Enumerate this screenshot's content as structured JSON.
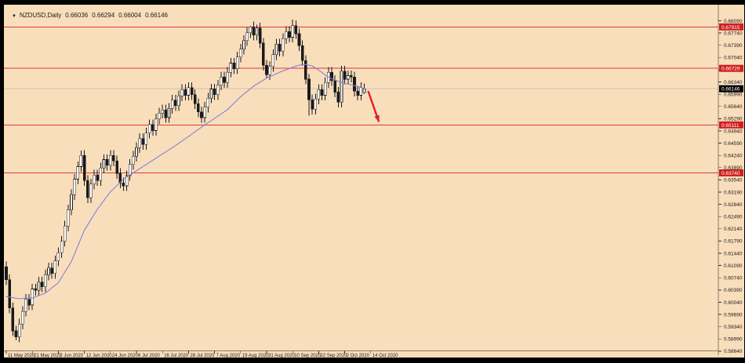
{
  "window": {
    "kind": "mt4-chart-window"
  },
  "title": {
    "marker": "▼",
    "symbol_period": "NZDUSD,Daily",
    "open": "0.66036",
    "high": "0.66294",
    "low": "0.66004",
    "close": "0.66146"
  },
  "colors": {
    "background": "#f9debc",
    "frame": "#010101",
    "bull_body": "#ffffff",
    "bear_body": "#1a1a1a",
    "wick": "#1a1a1a",
    "ma_line": "#8181d8",
    "level_line": "#e03a3a",
    "level_tag_bg": "#cf2020",
    "level_tag_text": "#ffffff",
    "current_line": "#c8c2b4",
    "current_tag_bg": "#000000",
    "current_tag_text": "#ffffff",
    "axis_line": "#8a7a60",
    "axis_text": "#1a1a1a",
    "arrow": "#e21f1f"
  },
  "chart_data": {
    "type": "candlestick",
    "title": "NZDUSD,Daily",
    "symbol": "NZDUSD",
    "timeframe": "Daily",
    "last_quote": {
      "open": 0.66036,
      "high": 0.66294,
      "low": 0.66004,
      "close": 0.66146
    },
    "current_price": 0.66146,
    "x_tick_labels": [
      "11 May 2020",
      "21 May 2020",
      "2 Jun 2020",
      "12 Jun 2020",
      "24 Jun 2020",
      "6 Jul 2020",
      "16 Jul 2020",
      "28 Jul 2020",
      "7 Aug 2020",
      "19 Aug 2020",
      "31 Aug 2020",
      "10 Sep 2020",
      "22 Sep 2020",
      "2 Oct 2020",
      "14 Oct 2020"
    ],
    "bars_per_x_tick": 8,
    "y_axis": {
      "price_top": 0.6855,
      "price_bottom": 0.5866,
      "tick_labels": [
        "0.68090",
        "0.67740",
        "0.67390",
        "0.67040",
        "0.66690",
        "0.66340",
        "0.65990",
        "0.65640",
        "0.65290",
        "0.64940",
        "0.64590",
        "0.64240",
        "0.63890",
        "0.63540",
        "0.63190",
        "0.62840",
        "0.62490",
        "0.62140",
        "0.61790",
        "0.61440",
        "0.61090",
        "0.60740",
        "0.60390",
        "0.60040",
        "0.59690",
        "0.59340",
        "0.58990",
        "0.58640"
      ]
    },
    "price_levels": [
      {
        "price": 0.67915,
        "label": "0.67915"
      },
      {
        "price": 0.66729,
        "label": "0.66729"
      },
      {
        "price": 0.65111,
        "label": "0.65111"
      },
      {
        "price": 0.6374,
        "label": "0.63740"
      }
    ],
    "bars": [
      [
        0.6105,
        0.612,
        0.6053,
        0.6068
      ],
      [
        0.6068,
        0.6083,
        0.5973,
        0.5988
      ],
      [
        0.5988,
        0.6003,
        0.5907,
        0.5922
      ],
      [
        0.5922,
        0.5937,
        0.5895,
        0.5905
      ],
      [
        0.5905,
        0.5957,
        0.589,
        0.5942
      ],
      [
        0.5942,
        0.5993,
        0.5927,
        0.5978
      ],
      [
        0.5978,
        0.6027,
        0.5963,
        0.6012
      ],
      [
        0.6012,
        0.6027,
        0.5981,
        0.5996
      ],
      [
        0.5996,
        0.6057,
        0.5981,
        0.6042
      ],
      [
        0.6042,
        0.6057,
        0.6023,
        0.6038
      ],
      [
        0.6038,
        0.6077,
        0.6023,
        0.6062
      ],
      [
        0.6062,
        0.6077,
        0.6033,
        0.6048
      ],
      [
        0.6048,
        0.6097,
        0.6033,
        0.6082
      ],
      [
        0.6082,
        0.6117,
        0.6067,
        0.6102
      ],
      [
        0.6102,
        0.6117,
        0.6071,
        0.6086
      ],
      [
        0.6086,
        0.6137,
        0.6071,
        0.6122
      ],
      [
        0.6122,
        0.6161,
        0.6107,
        0.6146
      ],
      [
        0.6146,
        0.6193,
        0.6131,
        0.6178
      ],
      [
        0.6178,
        0.6237,
        0.6163,
        0.6222
      ],
      [
        0.6222,
        0.6283,
        0.6207,
        0.6268
      ],
      [
        0.6268,
        0.6327,
        0.6253,
        0.6312
      ],
      [
        0.6312,
        0.6371,
        0.6297,
        0.6356
      ],
      [
        0.6356,
        0.6407,
        0.6341,
        0.6392
      ],
      [
        0.6392,
        0.6438,
        0.6377,
        0.6424
      ],
      [
        0.6424,
        0.6439,
        0.6337,
        0.6352
      ],
      [
        0.6352,
        0.6367,
        0.6288,
        0.6303
      ],
      [
        0.6303,
        0.6357,
        0.6288,
        0.6342
      ],
      [
        0.6342,
        0.6383,
        0.6327,
        0.6368
      ],
      [
        0.6368,
        0.6383,
        0.6337,
        0.6352
      ],
      [
        0.6352,
        0.6403,
        0.6337,
        0.6388
      ],
      [
        0.6388,
        0.6427,
        0.6373,
        0.6412
      ],
      [
        0.6412,
        0.6427,
        0.6381,
        0.6396
      ],
      [
        0.6396,
        0.6439,
        0.6381,
        0.6424
      ],
      [
        0.6424,
        0.6439,
        0.6393,
        0.6408
      ],
      [
        0.6408,
        0.6423,
        0.6357,
        0.6372
      ],
      [
        0.6372,
        0.6387,
        0.633,
        0.6345
      ],
      [
        0.6345,
        0.636,
        0.6322,
        0.6337
      ],
      [
        0.6337,
        0.6381,
        0.6322,
        0.6366
      ],
      [
        0.6366,
        0.6413,
        0.6351,
        0.6398
      ],
      [
        0.6398,
        0.6437,
        0.6383,
        0.6422
      ],
      [
        0.6422,
        0.6461,
        0.6407,
        0.6446
      ],
      [
        0.6446,
        0.6487,
        0.6431,
        0.6472
      ],
      [
        0.6472,
        0.6487,
        0.644,
        0.6455
      ],
      [
        0.6455,
        0.6503,
        0.644,
        0.6488
      ],
      [
        0.6488,
        0.6527,
        0.6473,
        0.6512
      ],
      [
        0.6512,
        0.6527,
        0.648,
        0.6495
      ],
      [
        0.6495,
        0.6543,
        0.648,
        0.6528
      ],
      [
        0.6528,
        0.656,
        0.6513,
        0.6545
      ],
      [
        0.6545,
        0.6569,
        0.653,
        0.6554
      ],
      [
        0.6554,
        0.6569,
        0.6517,
        0.6532
      ],
      [
        0.6532,
        0.6573,
        0.6517,
        0.6558
      ],
      [
        0.6558,
        0.6597,
        0.6543,
        0.6582
      ],
      [
        0.6582,
        0.6597,
        0.6551,
        0.6566
      ],
      [
        0.6566,
        0.6609,
        0.6551,
        0.6594
      ],
      [
        0.6594,
        0.6627,
        0.6579,
        0.6612
      ],
      [
        0.6612,
        0.6627,
        0.6581,
        0.6596
      ],
      [
        0.6596,
        0.6633,
        0.6581,
        0.6618
      ],
      [
        0.6618,
        0.6633,
        0.6583,
        0.6598
      ],
      [
        0.6598,
        0.6613,
        0.6557,
        0.6572
      ],
      [
        0.6572,
        0.6587,
        0.6533,
        0.6548
      ],
      [
        0.6548,
        0.6563,
        0.6517,
        0.6532
      ],
      [
        0.6532,
        0.6577,
        0.6517,
        0.6562
      ],
      [
        0.6562,
        0.6603,
        0.6547,
        0.6588
      ],
      [
        0.6588,
        0.6629,
        0.6573,
        0.6614
      ],
      [
        0.6614,
        0.6629,
        0.6583,
        0.6598
      ],
      [
        0.6598,
        0.664,
        0.6583,
        0.6625
      ],
      [
        0.6625,
        0.6663,
        0.661,
        0.6648
      ],
      [
        0.6648,
        0.6663,
        0.6617,
        0.6632
      ],
      [
        0.6632,
        0.6677,
        0.6617,
        0.6662
      ],
      [
        0.6662,
        0.6703,
        0.6647,
        0.6688
      ],
      [
        0.6688,
        0.6703,
        0.6657,
        0.6672
      ],
      [
        0.6672,
        0.672,
        0.6657,
        0.6705
      ],
      [
        0.6705,
        0.6743,
        0.669,
        0.6728
      ],
      [
        0.6728,
        0.6767,
        0.6713,
        0.6752
      ],
      [
        0.6752,
        0.679,
        0.6737,
        0.6775
      ],
      [
        0.6775,
        0.6795,
        0.676,
        0.6792
      ],
      [
        0.6792,
        0.6807,
        0.6753,
        0.6768
      ],
      [
        0.6768,
        0.6798,
        0.6753,
        0.6788
      ],
      [
        0.6788,
        0.6803,
        0.673,
        0.6745
      ],
      [
        0.6745,
        0.676,
        0.6667,
        0.6682
      ],
      [
        0.6682,
        0.6697,
        0.6645,
        0.6655
      ],
      [
        0.6655,
        0.6693,
        0.664,
        0.6678
      ],
      [
        0.6678,
        0.6727,
        0.6663,
        0.6712
      ],
      [
        0.6712,
        0.6757,
        0.6697,
        0.6742
      ],
      [
        0.6742,
        0.6757,
        0.6707,
        0.6722
      ],
      [
        0.6722,
        0.6773,
        0.6707,
        0.6758
      ],
      [
        0.6758,
        0.6793,
        0.6743,
        0.6778
      ],
      [
        0.6778,
        0.6793,
        0.6747,
        0.6762
      ],
      [
        0.6762,
        0.6812,
        0.6747,
        0.6795
      ],
      [
        0.6795,
        0.681,
        0.6757,
        0.6772
      ],
      [
        0.6772,
        0.6787,
        0.6723,
        0.6738
      ],
      [
        0.6738,
        0.6753,
        0.668,
        0.6695
      ],
      [
        0.6695,
        0.671,
        0.6627,
        0.6642
      ],
      [
        0.6642,
        0.6657,
        0.6538,
        0.6583
      ],
      [
        0.6583,
        0.6598,
        0.6541,
        0.6556
      ],
      [
        0.6556,
        0.66,
        0.6541,
        0.6585
      ],
      [
        0.6585,
        0.6627,
        0.657,
        0.6612
      ],
      [
        0.6612,
        0.6627,
        0.6581,
        0.6596
      ],
      [
        0.6596,
        0.6647,
        0.6581,
        0.6632
      ],
      [
        0.6632,
        0.6677,
        0.6617,
        0.6662
      ],
      [
        0.6662,
        0.6677,
        0.6623,
        0.6638
      ],
      [
        0.6638,
        0.6653,
        0.659,
        0.6605
      ],
      [
        0.6605,
        0.662,
        0.6561,
        0.6576
      ],
      [
        0.6576,
        0.668,
        0.6561,
        0.6665
      ],
      [
        0.6665,
        0.668,
        0.6627,
        0.6642
      ],
      [
        0.6642,
        0.6667,
        0.6627,
        0.6652
      ],
      [
        0.6652,
        0.6667,
        0.6633,
        0.6648
      ],
      [
        0.6648,
        0.6663,
        0.6593,
        0.6608
      ],
      [
        0.6608,
        0.6623,
        0.6581,
        0.6596
      ],
      [
        0.6596,
        0.6633,
        0.6581,
        0.6618
      ],
      [
        0.66036,
        0.66294,
        0.66004,
        0.66146
      ]
    ],
    "ma_points": [
      [
        0,
        0.602
      ],
      [
        4,
        0.6014
      ],
      [
        8,
        0.6016
      ],
      [
        12,
        0.603
      ],
      [
        16,
        0.606
      ],
      [
        20,
        0.612
      ],
      [
        24,
        0.621
      ],
      [
        28,
        0.627
      ],
      [
        32,
        0.632
      ],
      [
        36,
        0.6356
      ],
      [
        40,
        0.638
      ],
      [
        44,
        0.6404
      ],
      [
        48,
        0.6428
      ],
      [
        52,
        0.6452
      ],
      [
        56,
        0.6478
      ],
      [
        60,
        0.6505
      ],
      [
        64,
        0.653
      ],
      [
        68,
        0.6555
      ],
      [
        72,
        0.6592
      ],
      [
        76,
        0.6622
      ],
      [
        80,
        0.6645
      ],
      [
        84,
        0.6662
      ],
      [
        88,
        0.6676
      ],
      [
        90,
        0.6682
      ],
      [
        92,
        0.6684
      ],
      [
        94,
        0.668
      ],
      [
        96,
        0.6668
      ],
      [
        98,
        0.6654
      ],
      [
        100,
        0.6643
      ],
      [
        102,
        0.6636
      ],
      [
        104,
        0.663
      ],
      [
        106,
        0.6626
      ],
      [
        108,
        0.6621
      ],
      [
        110,
        0.6616
      ]
    ],
    "annotation_arrow": {
      "from": [
        111.2,
        0.6608
      ],
      "to": [
        114.5,
        0.652
      ]
    }
  }
}
